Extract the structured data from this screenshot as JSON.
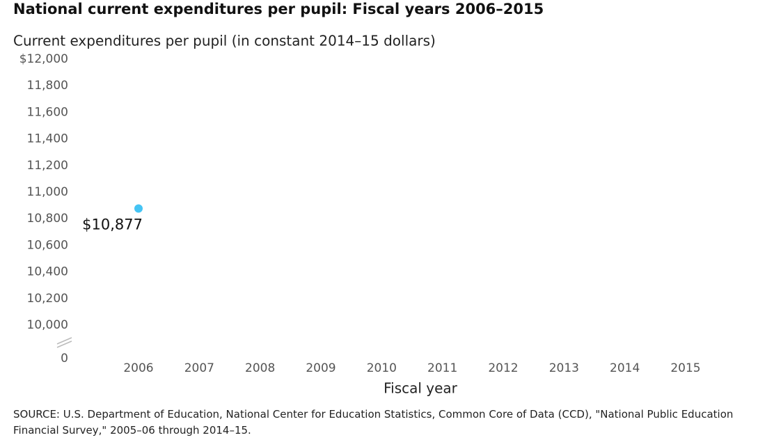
{
  "chart_data": {
    "type": "line",
    "title": "National current expenditures per pupil: Fiscal years 2006–2015",
    "y_axis_label": "Current expenditures per pupil (in constant 2014–15 dollars)",
    "x_axis_label": "Fiscal year",
    "categories": [
      "2006",
      "2007",
      "2008",
      "2009",
      "2010",
      "2011",
      "2012",
      "2013",
      "2014",
      "2015"
    ],
    "series": [
      {
        "color": "#45c4f4",
        "values": [
          10877,
          null,
          null,
          null,
          null,
          null,
          null,
          null,
          null,
          null
        ],
        "value_labels": [
          "$10,877",
          null,
          null,
          null,
          null,
          null,
          null,
          null,
          null,
          null
        ]
      }
    ],
    "ylim": [
      0,
      12000
    ],
    "axis_break": [
      0,
      10000
    ],
    "yticks": [
      {
        "value": 0,
        "label": "0"
      },
      {
        "value": 10000,
        "label": "10,000"
      },
      {
        "value": 10200,
        "label": "10,200"
      },
      {
        "value": 10400,
        "label": "10,400"
      },
      {
        "value": 10600,
        "label": "10,600"
      },
      {
        "value": 10800,
        "label": "10,800"
      },
      {
        "value": 11000,
        "label": "11,000"
      },
      {
        "value": 11200,
        "label": "11,200"
      },
      {
        "value": 11400,
        "label": "11,400"
      },
      {
        "value": 11600,
        "label": "11,600"
      },
      {
        "value": 11800,
        "label": "11,800"
      },
      {
        "value": 12000,
        "label": "$12,000"
      }
    ],
    "grid": false,
    "source": "SOURCE: U.S. Department of Education, National Center for Education Statistics, Common Core of Data (CCD), \"National Public Education Financial Survey,\" 2005–06 through 2014–15."
  }
}
